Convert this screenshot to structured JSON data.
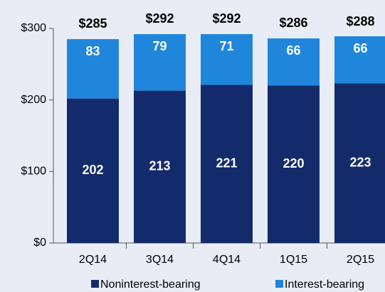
{
  "chart_data": {
    "type": "stacked_bar",
    "categories": [
      "2Q14",
      "3Q14",
      "4Q14",
      "1Q15",
      "2Q15"
    ],
    "series": [
      {
        "name": "Noninterest-bearing",
        "color": "#132a6b",
        "values": [
          202,
          213,
          221,
          220,
          223
        ]
      },
      {
        "name": "Interest-bearing",
        "color": "#1f86dc",
        "values": [
          83,
          79,
          71,
          66,
          66
        ]
      }
    ],
    "totals": [
      285,
      292,
      292,
      286,
      288
    ],
    "total_labels": [
      "$285",
      "$292",
      "$292",
      "$286",
      "$288"
    ],
    "ylim": [
      0,
      300
    ],
    "yticks": [
      {
        "value": 0,
        "label": "$0"
      },
      {
        "value": 100,
        "label": "$100"
      },
      {
        "value": 200,
        "label": "$200"
      },
      {
        "value": 300,
        "label": "$300"
      }
    ],
    "legend": "bottom"
  }
}
